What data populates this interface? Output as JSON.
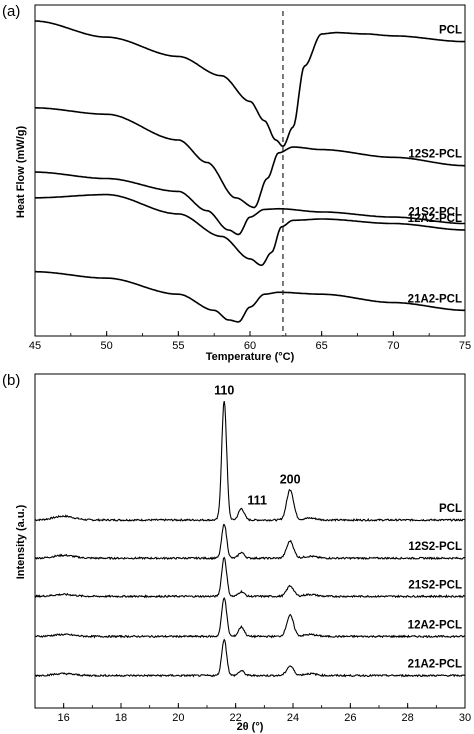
{
  "chart_data": [
    {
      "panel_label": "(a)",
      "type": "line",
      "xlabel": "Temperature (°C)",
      "ylabel": "Heat Flow (mW/g)",
      "xlim": [
        45,
        75
      ],
      "xticks": [
        "45",
        "50",
        "55",
        "60",
        "65",
        "70",
        "75"
      ],
      "y_tick_labels": false,
      "grid": false,
      "reference_line": {
        "x": 62.3,
        "style": "dashed"
      },
      "series": [
        {
          "name": "PCL",
          "x": [
            45,
            50,
            55,
            58,
            60,
            61,
            61.8,
            62.3,
            63,
            63.8,
            65,
            66,
            68,
            70,
            75
          ],
          "y": [
            4.3,
            4.05,
            3.75,
            3.45,
            3.05,
            2.75,
            2.45,
            2.35,
            2.65,
            3.6,
            4.1,
            4.12,
            4.1,
            4.07,
            3.98
          ]
        },
        {
          "name": "12S2-PCL",
          "x": [
            45,
            50,
            55,
            57,
            59,
            60.3,
            61.2,
            62,
            63,
            65,
            70,
            75
          ],
          "y": [
            2.95,
            2.85,
            2.45,
            2.1,
            1.55,
            1.4,
            1.85,
            2.25,
            2.34,
            2.3,
            2.18,
            2.05
          ]
        },
        {
          "name": "21S2-PCL",
          "x": [
            45,
            50,
            55,
            57,
            58.5,
            59.2,
            60,
            61,
            62,
            65,
            70,
            75
          ],
          "y": [
            1.95,
            1.85,
            1.65,
            1.35,
            1.05,
            0.98,
            1.25,
            1.37,
            1.38,
            1.33,
            1.25,
            1.15
          ]
        },
        {
          "name": "12A2-PCL",
          "x": [
            45,
            50,
            55,
            58,
            60,
            60.8,
            61.5,
            62.2,
            63,
            65,
            70,
            75
          ],
          "y": [
            1.55,
            1.6,
            1.3,
            0.95,
            0.6,
            0.5,
            0.7,
            1.1,
            1.2,
            1.22,
            1.15,
            1.05
          ]
        },
        {
          "name": "21A2-PCL",
          "x": [
            45,
            50,
            55,
            57.5,
            58.5,
            59.2,
            60,
            61,
            62,
            65,
            70,
            75
          ],
          "y": [
            0.4,
            0.3,
            0.05,
            -0.2,
            -0.35,
            -0.38,
            -0.15,
            0.05,
            0.08,
            0.05,
            -0.08,
            -0.2
          ]
        }
      ],
      "ylim": [
        -0.6,
        4.55
      ]
    },
    {
      "panel_label": "(b)",
      "type": "line",
      "xlabel": "2θ (°)",
      "ylabel": "Intensity (a.u.)",
      "xlim": [
        15,
        30
      ],
      "xticks": [
        "16",
        "18",
        "20",
        "22",
        "24",
        "26",
        "28",
        "30"
      ],
      "y_tick_labels": false,
      "grid": false,
      "peak_labels": [
        {
          "text": "110",
          "x": 21.6
        },
        {
          "text": "111",
          "x": 22.2
        },
        {
          "text": "200",
          "x": 23.9
        }
      ],
      "peak_positions": [
        21.6,
        22.2,
        23.9
      ],
      "series": [
        {
          "name": "PCL",
          "baseline": 1.97,
          "peak_heights": [
            1.25,
            0.12,
            0.32
          ],
          "hump": 0.04
        },
        {
          "name": "12S2-PCL",
          "baseline": 1.57,
          "peak_heights": [
            0.36,
            0.06,
            0.18
          ],
          "hump": 0.03
        },
        {
          "name": "21S2-PCL",
          "baseline": 1.17,
          "peak_heights": [
            0.41,
            0.05,
            0.11
          ],
          "hump": 0.02
        },
        {
          "name": "12A2-PCL",
          "baseline": 0.75,
          "peak_heights": [
            0.41,
            0.1,
            0.22
          ],
          "hump": 0.02
        },
        {
          "name": "21A2-PCL",
          "baseline": 0.34,
          "peak_heights": [
            0.38,
            0.05,
            0.1
          ],
          "hump": 0.02
        }
      ],
      "ylim": [
        0,
        3.5
      ]
    }
  ]
}
